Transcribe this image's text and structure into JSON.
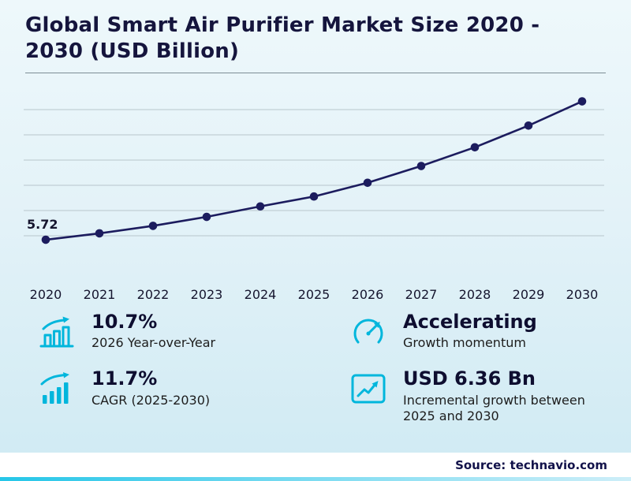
{
  "header": {
    "title_line1": "Global Smart Air Purifier Market Size 2020 -",
    "title_line2": "2030 (USD Billion)"
  },
  "chart_data": {
    "type": "line",
    "title": "Global Smart Air Purifier Market Size 2020 - 2030 (USD Billion)",
    "x": [
      "2020",
      "2021",
      "2022",
      "2023",
      "2024",
      "2025",
      "2026",
      "2027",
      "2028",
      "2029",
      "2030"
    ],
    "series": [
      {
        "name": "Market size (USD Billion)",
        "values": [
          5.72,
          6.15,
          6.65,
          7.25,
          7.95,
          8.61,
          9.53,
          10.65,
          11.9,
          13.35,
          14.97
        ]
      }
    ],
    "point_label": {
      "x": "2020",
      "text": "5.72"
    },
    "ylim": [
      4.3,
      16.0
    ],
    "grid": true,
    "gridline_count": 6,
    "line_color": "#1c1c5e",
    "legend": "none"
  },
  "stats": [
    {
      "value": "10.7%",
      "label": "2026 Year-over-Year",
      "icon": "yoy-bar-chart-icon"
    },
    {
      "value": "Accelerating",
      "label": "Growth momentum",
      "icon": "speedometer-icon"
    },
    {
      "value": "11.7%",
      "label": "CAGR (2025-2030)",
      "icon": "cagr-bar-chart-icon"
    },
    {
      "value": "USD 6.36 Bn",
      "label": "Incremental growth between 2025 and 2030",
      "icon": "incremental-growth-icon"
    }
  ],
  "footer": {
    "source": "Source: technavio.com"
  },
  "colors": {
    "accent": "#00b6dc",
    "line": "#1c1c5e",
    "navy_text": "#15153d"
  }
}
